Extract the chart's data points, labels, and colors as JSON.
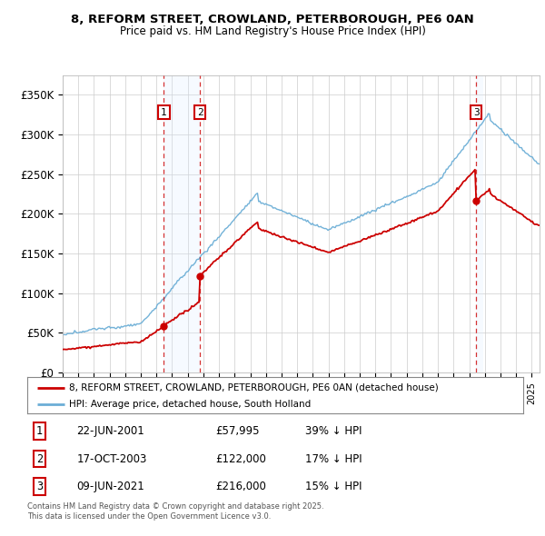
{
  "title_line1": "8, REFORM STREET, CROWLAND, PETERBOROUGH, PE6 0AN",
  "title_line2": "Price paid vs. HM Land Registry's House Price Index (HPI)",
  "ylim": [
    0,
    375000
  ],
  "yticks": [
    0,
    50000,
    100000,
    150000,
    200000,
    250000,
    300000,
    350000
  ],
  "ytick_labels": [
    "£0",
    "£50K",
    "£100K",
    "£150K",
    "£200K",
    "£250K",
    "£300K",
    "£350K"
  ],
  "sale_dates": [
    2001.47,
    2003.79,
    2021.44
  ],
  "sale_prices": [
    57995,
    122000,
    216000
  ],
  "sale_labels": [
    "1",
    "2",
    "3"
  ],
  "hpi_color": "#6baed6",
  "price_color": "#cc0000",
  "shade_color": "#ddeeff",
  "legend_price_label": "8, REFORM STREET, CROWLAND, PETERBOROUGH, PE6 0AN (detached house)",
  "legend_hpi_label": "HPI: Average price, detached house, South Holland",
  "table_entries": [
    {
      "num": "1",
      "date": "22-JUN-2001",
      "price": "£57,995",
      "pct": "39% ↓ HPI"
    },
    {
      "num": "2",
      "date": "17-OCT-2003",
      "price": "£122,000",
      "pct": "17% ↓ HPI"
    },
    {
      "num": "3",
      "date": "09-JUN-2021",
      "price": "£216,000",
      "pct": "15% ↓ HPI"
    }
  ],
  "footnote": "Contains HM Land Registry data © Crown copyright and database right 2025.\nThis data is licensed under the Open Government Licence v3.0.",
  "background_color": "#ffffff",
  "grid_color": "#cccccc"
}
